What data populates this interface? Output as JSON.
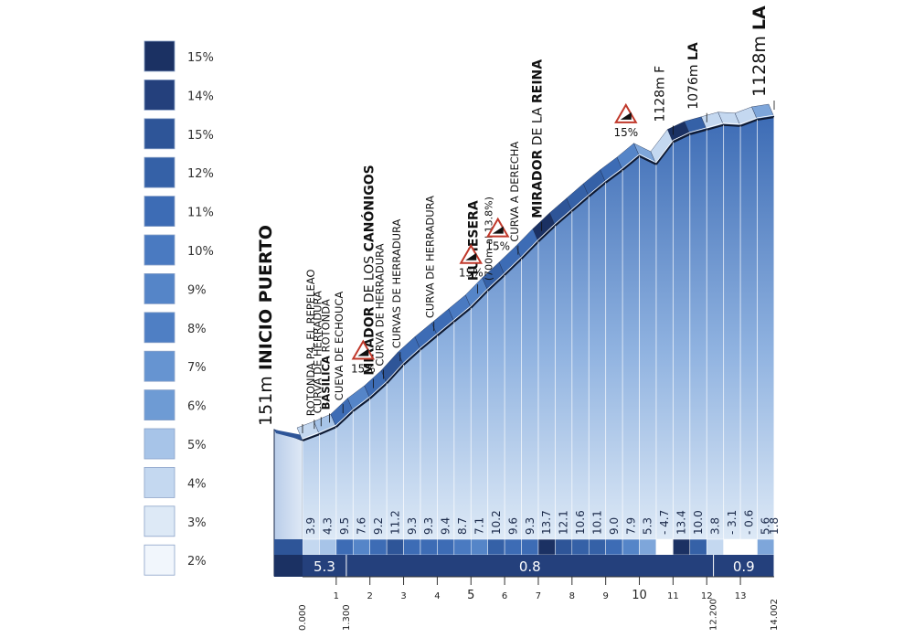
{
  "chart_data": {
    "type": "area",
    "title": "",
    "xlabel": "",
    "ylabel": "",
    "legend": {
      "placement": "left",
      "entries": [
        {
          "label": "15%",
          "color": "#1b3163"
        },
        {
          "label": "14%",
          "color": "#24407c"
        },
        {
          "label": "15%",
          "color": "#2e5598"
        },
        {
          "label": "12%",
          "color": "#3561a7"
        },
        {
          "label": "11%",
          "color": "#3d6cb5"
        },
        {
          "label": "10%",
          "color": "#4a7ac1"
        },
        {
          "label": "9%",
          "color": "#5585c8"
        },
        {
          "label": "8%",
          "color": "#4f7fc4"
        },
        {
          "label": "7%",
          "color": "#6694d1"
        },
        {
          "label": "6%",
          "color": "#6e9bd4"
        },
        {
          "label": "5%",
          "color": "#a7c4e8"
        },
        {
          "label": "4%",
          "color": "#c4d8f0"
        },
        {
          "label": "3%",
          "color": "#dde9f6"
        },
        {
          "label": "2%",
          "color": "#f1f6fc"
        }
      ]
    },
    "x_ticks": [
      "1",
      "2",
      "3",
      "4",
      "5",
      "6",
      "7",
      "8",
      "9",
      "10",
      "11",
      "12",
      "13"
    ],
    "distance_marks": [
      "0.000",
      "1.300",
      "12.200",
      "14.002"
    ],
    "gradients": [
      "3.9",
      "4.3",
      "9.5",
      "7.6",
      "9.2",
      "11.2",
      "9.3",
      "9.3",
      "9.4",
      "8.7",
      "7.1",
      "10.2",
      "9.6",
      "9.3",
      "13.7",
      "12.1",
      "10.6",
      "10.1",
      "9.0",
      "7.9",
      "5.3",
      "- 4.7",
      "13.4",
      "10.0",
      "3.8",
      "- 3.1",
      "- 0.6",
      "5.6",
      "1.8"
    ],
    "segment_values": [
      3.9,
      4.3,
      9.5,
      7.6,
      9.2,
      11.2,
      9.3,
      9.3,
      9.4,
      8.7,
      7.1,
      10.2,
      9.6,
      9.3,
      13.7,
      12.1,
      10.6,
      10.1,
      9.0,
      7.9,
      5.3,
      -4.7,
      13.4,
      10.0,
      3.8,
      -3.1,
      -0.6,
      5.6,
      1.8
    ],
    "km_boundaries": [
      0,
      0.5,
      1,
      1.5,
      2,
      2.5,
      3,
      3.5,
      4,
      4.5,
      5,
      5.5,
      6,
      6.5,
      7,
      7.5,
      8,
      8.5,
      9,
      9.5,
      10,
      10.5,
      11,
      11.5,
      12,
      12.5,
      13,
      13.5,
      14,
      14.002
    ],
    "sectors": [
      {
        "label": "5.3",
        "from_km": 0,
        "to_km": 1.3
      },
      {
        "label": "0.8",
        "from_km": 1.3,
        "to_km": 12.2
      },
      {
        "label": "0.9",
        "from_km": 12.2,
        "to_km": 14.002
      }
    ],
    "profile": [
      {
        "km": 0,
        "alt": 151
      },
      {
        "km": 0.5,
        "alt": 170
      },
      {
        "km": 1,
        "alt": 192
      },
      {
        "km": 1.5,
        "alt": 240
      },
      {
        "km": 2,
        "alt": 278
      },
      {
        "km": 2.5,
        "alt": 324
      },
      {
        "km": 3,
        "alt": 380
      },
      {
        "km": 3.5,
        "alt": 426
      },
      {
        "km": 4,
        "alt": 468
      },
      {
        "km": 4.5,
        "alt": 510
      },
      {
        "km": 5,
        "alt": 552
      },
      {
        "km": 5.5,
        "alt": 604
      },
      {
        "km": 6,
        "alt": 651
      },
      {
        "km": 6.5,
        "alt": 700
      },
      {
        "km": 7,
        "alt": 752
      },
      {
        "km": 7.5,
        "alt": 800
      },
      {
        "km": 8,
        "alt": 844
      },
      {
        "km": 8.5,
        "alt": 888
      },
      {
        "km": 9,
        "alt": 930
      },
      {
        "km": 9.5,
        "alt": 968
      },
      {
        "km": 10,
        "alt": 1010
      },
      {
        "km": 10.5,
        "alt": 985
      },
      {
        "km": 11,
        "alt": 1052
      },
      {
        "km": 11.5,
        "alt": 1076
      },
      {
        "km": 12,
        "alt": 1090
      },
      {
        "km": 12.5,
        "alt": 1104
      },
      {
        "km": 13,
        "alt": 1101
      },
      {
        "km": 13.5,
        "alt": 1120
      },
      {
        "km": 14.002,
        "alt": 1128
      }
    ],
    "ylim": [
      0,
      1180
    ],
    "xlim": [
      0,
      14.002
    ],
    "annotations": [
      {
        "km": 0.0,
        "bold": "INICIO PUERTO",
        "prefix": "151m ",
        "rest": ""
      },
      {
        "km": 0.35,
        "bold": "",
        "prefix": "",
        "rest": "ROTONDA P4, EL REPELEAO"
      },
      {
        "km": 0.55,
        "bold": "",
        "prefix": "",
        "rest": "CURVA DE HERRADURA"
      },
      {
        "km": 0.8,
        "bold": "BASÍLICA",
        "prefix": "",
        "rest": " ROTONDA"
      },
      {
        "km": 1.2,
        "bold": "",
        "prefix": "",
        "rest": "CUEVA DE ECHOUCA"
      },
      {
        "km": 2.1,
        "bold": "MIRADOR",
        "prefix": "",
        "rest": " DE LOS ",
        "bold2": "CANÓNIGOS"
      },
      {
        "km": 2.4,
        "bold": "",
        "prefix": "",
        "rest": "CURVA DE HERRADURA"
      },
      {
        "km": 2.9,
        "bold": "",
        "prefix": "",
        "rest": "CURVAS DE HERRADURA"
      },
      {
        "km": 3.9,
        "bold": "",
        "prefix": "",
        "rest": "CURVA DE HERRADURA"
      },
      {
        "km": 5.2,
        "bold": "HUMESERA",
        "prefix": "",
        "rest": "",
        "sub": "(700m al 13.8%)"
      },
      {
        "km": 6.4,
        "bold": "",
        "prefix": "",
        "rest": "CURVA A DERECHA"
      },
      {
        "km": 7.1,
        "bold": "MIRADOR",
        "prefix": "",
        "rest": " DE LA ",
        "bold2": "REINA"
      },
      {
        "km": 11.0,
        "bold": "",
        "prefix": "1128m ",
        "rest": "F"
      },
      {
        "km": 12.0,
        "bold": "LA",
        "prefix": "1076m ",
        "rest": ""
      },
      {
        "km": 14.002,
        "bold": "LA",
        "prefix": "1128m ",
        "rest": ""
      }
    ],
    "warnings": [
      {
        "km": 1.8,
        "label": "15%"
      },
      {
        "km": 5.0,
        "label": "15%"
      },
      {
        "km": 5.8,
        "label": "15%"
      },
      {
        "km": 9.6,
        "label": "15%"
      }
    ]
  }
}
